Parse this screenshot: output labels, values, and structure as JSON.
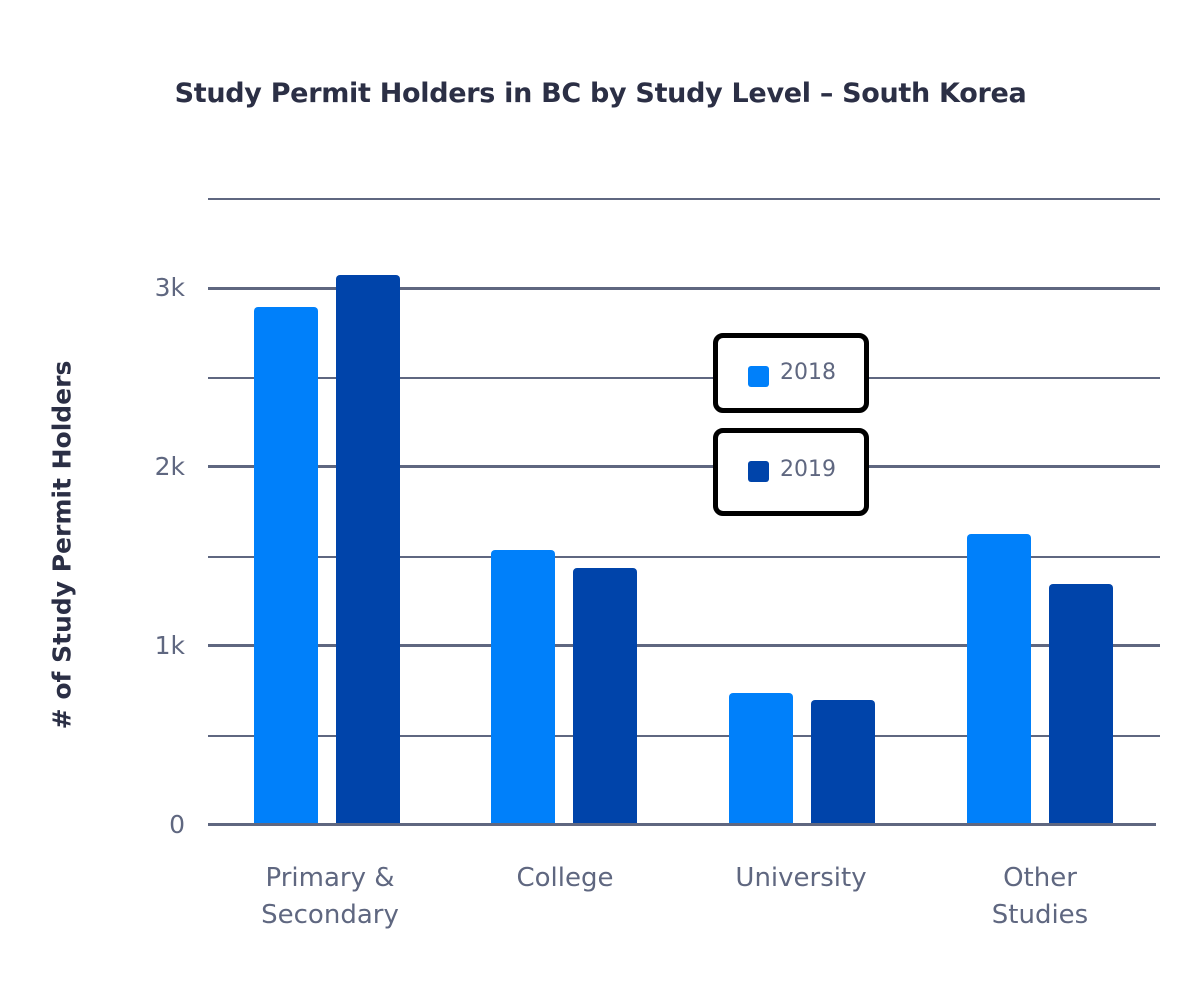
{
  "title": "Study Permit Holders in BC by Study Level – South Korea",
  "colors": {
    "s2018": "#0080fa",
    "s2019": "#0044aa",
    "grid": "#5f6780",
    "text": "#2b2f45"
  },
  "axes": {
    "ylabel": "# of Study Permit Holders",
    "ticks": [
      "0",
      "1k",
      "2k",
      "3k"
    ]
  },
  "legend": {
    "items": [
      {
        "label": "2018"
      },
      {
        "label": "2019"
      }
    ]
  },
  "x_labels": [
    {
      "line1": "Primary &",
      "line2": "Secondary"
    },
    {
      "line1": "College",
      "line2": ""
    },
    {
      "line1": "University",
      "line2": ""
    },
    {
      "line1": "Other",
      "line2": "Studies"
    }
  ],
  "chart_data": {
    "type": "bar",
    "title": "Study Permit Holders in BC by Study Level – South Korea",
    "xlabel": "",
    "ylabel": "# of Study Permit Holders",
    "categories": [
      "Primary & Secondary",
      "College",
      "University",
      "Other Studies"
    ],
    "series": [
      {
        "name": "2018",
        "color": "#0080fa",
        "values": [
          2900,
          1540,
          740,
          1630
        ]
      },
      {
        "name": "2019",
        "color": "#0044aa",
        "values": [
          3080,
          1440,
          700,
          1350
        ]
      }
    ],
    "ylim": [
      0,
      3500
    ],
    "yticks": [
      0,
      1000,
      2000,
      3000
    ],
    "ytick_labels": [
      "0",
      "1k",
      "2k",
      "3k"
    ],
    "grid": true,
    "legend_position": "inside-center"
  }
}
